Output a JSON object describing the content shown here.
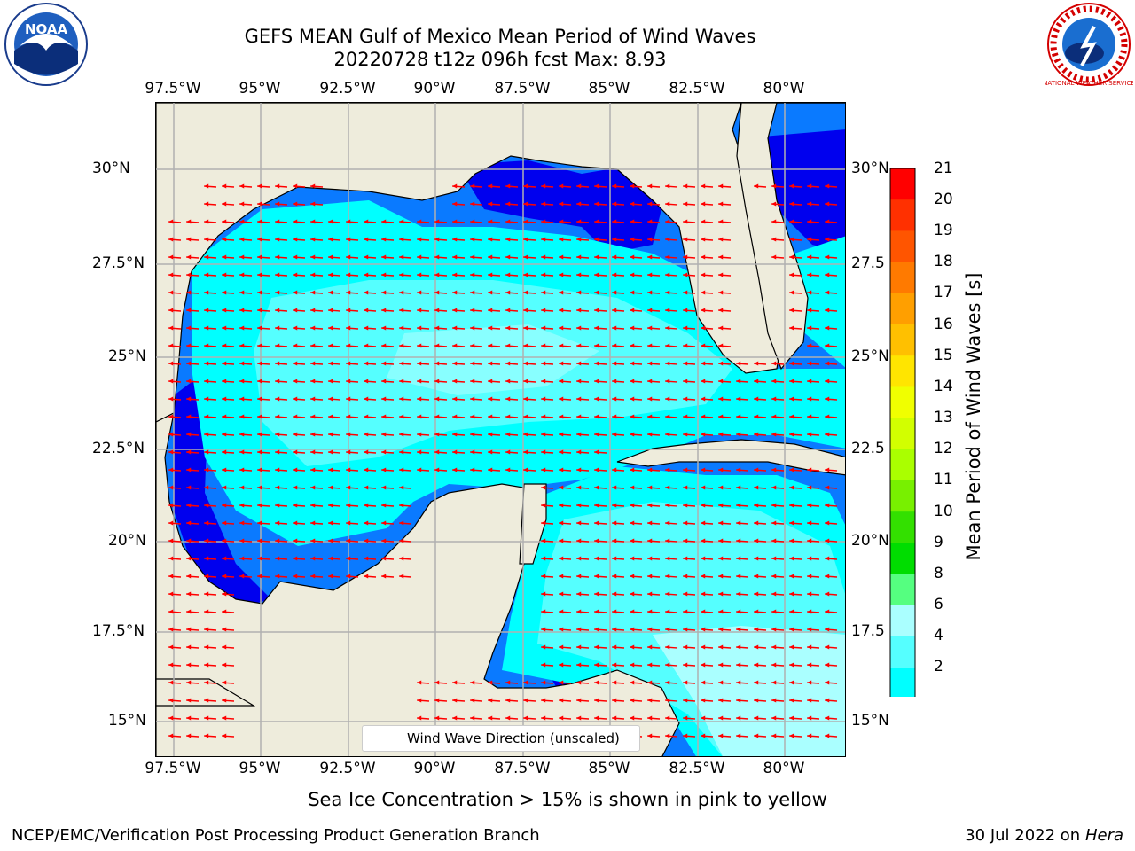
{
  "title": {
    "line1": "GEFS MEAN Gulf of Mexico Mean Period of Wind Waves",
    "line2": "20220728 t12z 096h fcst   Max: 8.93"
  },
  "lon_labels": [
    "97.5°W",
    "95°W",
    "92.5°W",
    "90°W",
    "87.5°W",
    "85°W",
    "82.5°W",
    "80°W"
  ],
  "lat_labels_left": [
    "30°N",
    "27.5°N",
    "25°N",
    "22.5°N",
    "20°N",
    "17.5°N",
    "15°N"
  ],
  "lat_labels_right": [
    "30°N",
    "27.5",
    "25°N",
    "22.5",
    "20°N",
    "17.5",
    "15°N"
  ],
  "colorbar": {
    "label": "Mean Period of Wind Waves [s]",
    "ticks": [
      "21",
      "20",
      "19",
      "18",
      "17",
      "16",
      "15",
      "14",
      "13",
      "12",
      "11",
      "10",
      "9",
      "8",
      "6",
      "4",
      "2"
    ],
    "colors": [
      "#ff0000",
      "#ff3000",
      "#ff5500",
      "#ff7a00",
      "#ff9f00",
      "#ffc000",
      "#ffe500",
      "#f0ff00",
      "#d2ff00",
      "#aaff00",
      "#78f000",
      "#33e000",
      "#00dd00",
      "#55ff80",
      "#aaffff",
      "#55ffff",
      "#00ffff",
      "#00eeff",
      "#0078ff",
      "#0000ee"
    ]
  },
  "legend": {
    "label": "Wind Wave Direction (unscaled)"
  },
  "notes": {
    "sea_ice": "Sea Ice Concentration > 15% is shown in pink to yellow"
  },
  "footer": {
    "left": "NCEP/EMC/Verification Post Processing Product Generation Branch",
    "date": "30 Jul 2022 on",
    "machine": "Hera"
  },
  "logos": {
    "noaa_text": "NOAA",
    "nws_text": "NATIONAL WEATHER SERVICE"
  },
  "colors": {
    "land": "#eeecdc",
    "sea_dark": "#0000ee",
    "sea_mid": "#0a7aff",
    "sea_cyan": "#00ffff",
    "sea_light": "#55ffff",
    "sea_pale": "#aaffff",
    "arrow": "#ff0000",
    "grid": "#b0b0b0"
  }
}
